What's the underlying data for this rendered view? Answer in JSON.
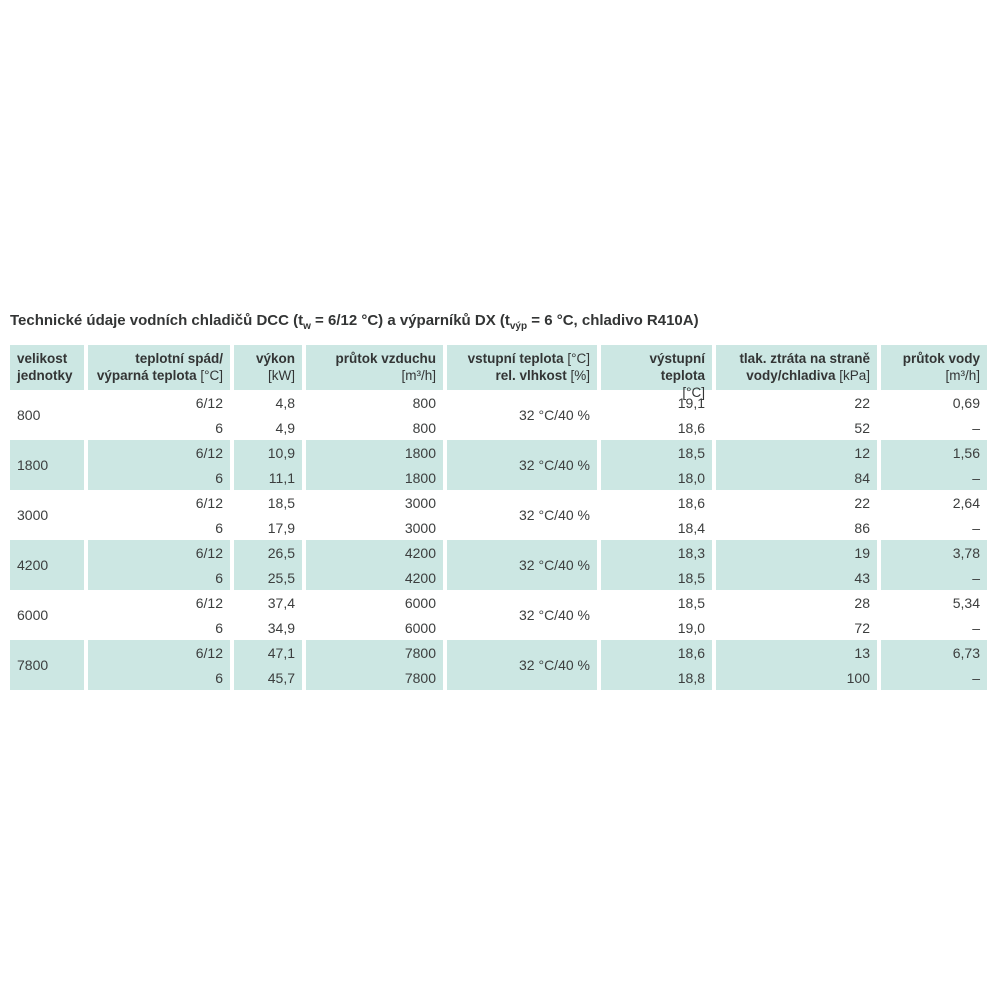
{
  "colors": {
    "row_teal": "#cce7e3",
    "text": "#3c3e3e"
  },
  "title": {
    "parts": [
      {
        "text": "Technické údaje vodních chladičů DCC (t",
        "sub": false
      },
      {
        "text": "w",
        "sub": true
      },
      {
        "text": " = 6/12 °C) a výparníků DX (t",
        "sub": false
      },
      {
        "text": "výp",
        "sub": true
      },
      {
        "text": " = 6 °C, chladivo R410A)",
        "sub": false
      }
    ]
  },
  "table": {
    "columns": [
      {
        "key": "unit-size",
        "align": "left",
        "line1": "velikost",
        "line1_unit": "",
        "line2": "jednotky",
        "line2_unit": ""
      },
      {
        "key": "temp-gradient",
        "align": "right",
        "line1": "teplotní spád/",
        "line1_unit": "",
        "line2": "výparná teplota",
        "line2_unit": "[°C]"
      },
      {
        "key": "power",
        "align": "right",
        "line1": "výkon",
        "line1_unit": "",
        "line2": "",
        "line2_unit": "[kW]"
      },
      {
        "key": "airflow",
        "align": "right",
        "line1": "průtok vzduchu",
        "line1_unit": "",
        "line2": "",
        "line2_unit": "[m³/h]"
      },
      {
        "key": "inlet-temp",
        "align": "right",
        "line1": "vstupní teplota",
        "line1_unit": "[°C]",
        "line2": "rel. vlhkost",
        "line2_unit": "[%]"
      },
      {
        "key": "outlet-temp",
        "align": "right",
        "line1": "výstupní teplota",
        "line1_unit": "",
        "line2": "",
        "line2_unit": "[°C]"
      },
      {
        "key": "pressure-drop",
        "align": "right",
        "line1": "tlak. ztráta na straně",
        "line1_unit": "",
        "line2": "vody/chladiva",
        "line2_unit": "[kPa]"
      },
      {
        "key": "water-flow",
        "align": "right",
        "line1": "průtok vody",
        "line1_unit": "",
        "line2": "",
        "line2_unit": "[m³/h]"
      }
    ],
    "rows": [
      {
        "size": "800",
        "inlet": "32 °C/40 %",
        "sub": [
          {
            "grad": "6/12",
            "power": "4,8",
            "airflow": "800",
            "outlet": "19,1",
            "pressure": "22",
            "waterflow": "0,69"
          },
          {
            "grad": "6",
            "power": "4,9",
            "airflow": "800",
            "outlet": "18,6",
            "pressure": "52",
            "waterflow": "–"
          }
        ]
      },
      {
        "size": "1800",
        "inlet": "32 °C/40 %",
        "sub": [
          {
            "grad": "6/12",
            "power": "10,9",
            "airflow": "1800",
            "outlet": "18,5",
            "pressure": "12",
            "waterflow": "1,56"
          },
          {
            "grad": "6",
            "power": "11,1",
            "airflow": "1800",
            "outlet": "18,0",
            "pressure": "84",
            "waterflow": "–"
          }
        ]
      },
      {
        "size": "3000",
        "inlet": "32 °C/40 %",
        "sub": [
          {
            "grad": "6/12",
            "power": "18,5",
            "airflow": "3000",
            "outlet": "18,6",
            "pressure": "22",
            "waterflow": "2,64"
          },
          {
            "grad": "6",
            "power": "17,9",
            "airflow": "3000",
            "outlet": "18,4",
            "pressure": "86",
            "waterflow": "–"
          }
        ]
      },
      {
        "size": "4200",
        "inlet": "32 °C/40 %",
        "sub": [
          {
            "grad": "6/12",
            "power": "26,5",
            "airflow": "4200",
            "outlet": "18,3",
            "pressure": "19",
            "waterflow": "3,78"
          },
          {
            "grad": "6",
            "power": "25,5",
            "airflow": "4200",
            "outlet": "18,5",
            "pressure": "43",
            "waterflow": "–"
          }
        ]
      },
      {
        "size": "6000",
        "inlet": "32 °C/40 %",
        "sub": [
          {
            "grad": "6/12",
            "power": "37,4",
            "airflow": "6000",
            "outlet": "18,5",
            "pressure": "28",
            "waterflow": "5,34"
          },
          {
            "grad": "6",
            "power": "34,9",
            "airflow": "6000",
            "outlet": "19,0",
            "pressure": "72",
            "waterflow": "–"
          }
        ]
      },
      {
        "size": "7800",
        "inlet": "32 °C/40 %",
        "sub": [
          {
            "grad": "6/12",
            "power": "47,1",
            "airflow": "7800",
            "outlet": "18,6",
            "pressure": "13",
            "waterflow": "6,73"
          },
          {
            "grad": "6",
            "power": "45,7",
            "airflow": "7800",
            "outlet": "18,8",
            "pressure": "100",
            "waterflow": "–"
          }
        ]
      }
    ]
  }
}
